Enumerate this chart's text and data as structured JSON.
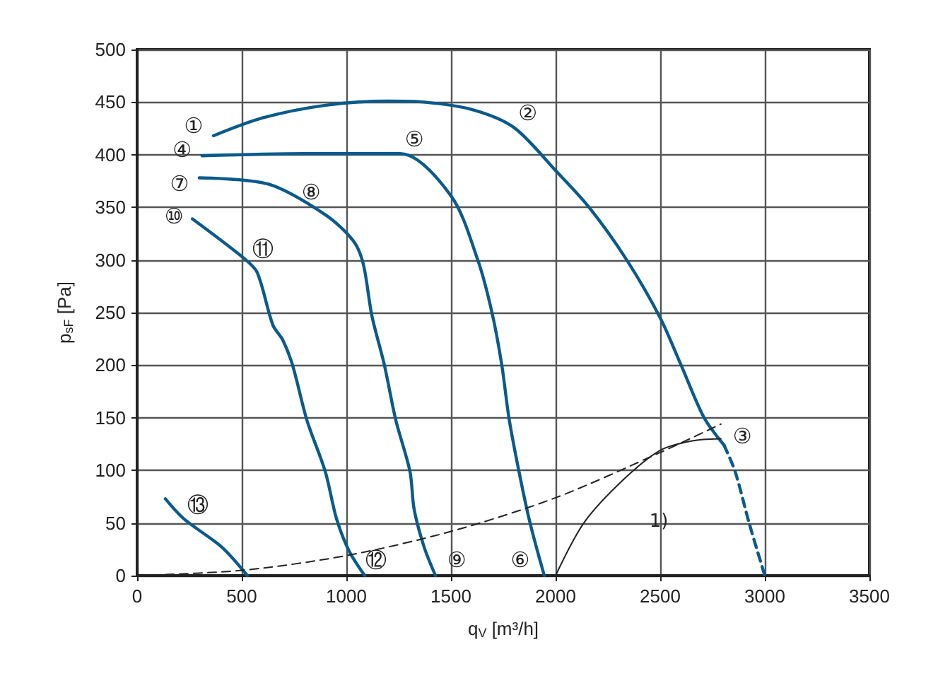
{
  "chart_data": {
    "type": "line",
    "xlabel": "q$_{V}$ [m³/h]",
    "ylabel": "p$_{sF}$ [Pa]",
    "xlim": [
      0,
      3500
    ],
    "xticks": [
      0,
      500,
      1000,
      1500,
      2000,
      2500,
      3000,
      3500
    ],
    "ylim": [
      0,
      500
    ],
    "yticks": [
      0,
      50,
      100,
      150,
      200,
      250,
      300,
      350,
      400,
      450,
      500
    ],
    "grid": true,
    "marker": "none",
    "series": [
      {
        "color": "#0b5a8c",
        "line_style": "solid",
        "x": [
          365,
          600,
          900,
          1200,
          1372,
          1600,
          1800,
          2000,
          2160,
          2340,
          2500,
          2600,
          2710,
          2805
        ],
        "values": [
          418,
          435,
          447,
          451,
          450,
          443,
          426,
          385,
          350,
          300,
          245,
          200,
          150,
          124
        ]
      },
      {
        "color": "#0b5a8c",
        "line_style": "dashed",
        "x": [
          2805,
          2858,
          2925,
          3000
        ],
        "values": [
          124,
          99,
          50,
          0
        ]
      },
      {
        "color": "#0b5a8c",
        "line_style": "solid",
        "x": [
          310,
          800,
          1257,
          1500,
          1628,
          1696,
          1743,
          1777,
          1824,
          1878,
          1946
        ],
        "values": [
          399,
          401,
          401,
          361,
          300,
          250,
          200,
          150,
          100,
          50,
          0
        ]
      },
      {
        "color": "#0b5a8c",
        "line_style": "solid",
        "x": [
          297,
          628,
          899,
          1034,
          1081,
          1122,
          1182,
          1236,
          1304,
          1324,
          1372,
          1426
        ],
        "values": [
          378,
          372,
          343,
          318,
          296,
          247,
          200,
          148,
          99,
          63,
          27,
          0
        ]
      },
      {
        "color": "#0b5a8c",
        "line_style": "solid",
        "x": [
          264,
          514,
          574,
          649,
          696,
          743,
          811,
          899,
          953,
          1014,
          1088
        ],
        "values": [
          339,
          301,
          288,
          238,
          224,
          200,
          148,
          99,
          54,
          23,
          0
        ]
      },
      {
        "color": "#0b5a8c",
        "line_style": "solid",
        "x": [
          135,
          223,
          405,
          527
        ],
        "values": [
          73,
          54,
          27,
          0
        ]
      },
      {
        "color": "#222222",
        "line_style": "dashed",
        "x": [
          0,
          500,
          1000,
          1500,
          2000,
          2500,
          2790
        ],
        "values": [
          0,
          5,
          19,
          42,
          74,
          117,
          144
        ]
      },
      {
        "color": "#222222",
        "line_style": "solid",
        "x": [
          2000,
          2135,
          2318,
          2500,
          2653,
          2790
        ],
        "values": [
          0,
          50,
          90,
          119,
          128,
          130
        ]
      }
    ],
    "annotations": [
      {
        "text": "①",
        "x": 365,
        "y": 418
      },
      {
        "text": "②",
        "x": 1800,
        "y": 426
      },
      {
        "text": "③",
        "x": 2805,
        "y": 124
      },
      {
        "text": "④",
        "x": 310,
        "y": 399
      },
      {
        "text": "⑤",
        "x": 1257,
        "y": 401
      },
      {
        "text": "⑥",
        "x": 1946,
        "y": 0
      },
      {
        "text": "⑦",
        "x": 297,
        "y": 378
      },
      {
        "text": "⑧",
        "x": 899,
        "y": 343
      },
      {
        "text": "⑨",
        "x": 1426,
        "y": 0
      },
      {
        "text": "⑩",
        "x": 264,
        "y": 339
      },
      {
        "text": "⑪",
        "x": 514,
        "y": 301
      },
      {
        "text": "⑫",
        "x": 1088,
        "y": 0
      },
      {
        "text": "⑬",
        "x": 223,
        "y": 54
      },
      "1)"
    ]
  }
}
